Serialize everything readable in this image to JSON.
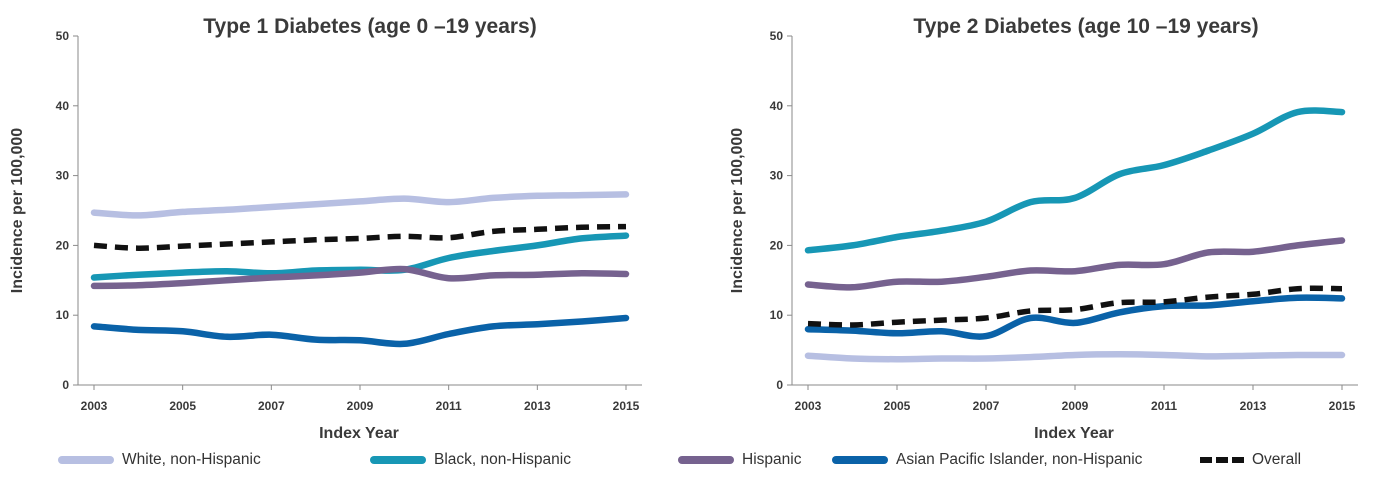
{
  "chart_data": [
    {
      "type": "line",
      "title": "Type 1 Diabetes (age 0 –19 years)",
      "xlabel": "Index Year",
      "ylabel": "Incidence per 100,000",
      "ylim": [
        0,
        50
      ],
      "yticks": [
        "0",
        "10",
        "20",
        "30",
        "40",
        "50"
      ],
      "xticks": [
        "2003",
        "2005",
        "2007",
        "2009",
        "2011",
        "2013",
        "2015"
      ],
      "x": [
        2003,
        2004,
        2005,
        2006,
        2007,
        2008,
        2009,
        2010,
        2011,
        2012,
        2013,
        2014,
        2015
      ],
      "series": [
        {
          "name": "White, non-Hispanic",
          "values": [
            24.7,
            24.3,
            24.8,
            25.1,
            25.5,
            25.9,
            26.3,
            26.7,
            26.2,
            26.8,
            27.1,
            27.2,
            27.3
          ]
        },
        {
          "name": "Black, non-Hispanic",
          "values": [
            15.4,
            15.8,
            16.1,
            16.3,
            16.0,
            16.4,
            16.5,
            16.5,
            18.2,
            19.2,
            20.0,
            21.0,
            21.4
          ]
        },
        {
          "name": "Hispanic",
          "values": [
            14.2,
            14.3,
            14.6,
            15.0,
            15.4,
            15.7,
            16.1,
            16.6,
            15.3,
            15.7,
            15.8,
            16.0,
            15.9
          ]
        },
        {
          "name": "Asian Pacific Islander, non-Hispanic",
          "values": [
            8.4,
            7.9,
            7.7,
            6.9,
            7.2,
            6.5,
            6.4,
            5.9,
            7.3,
            8.4,
            8.7,
            9.1,
            9.6
          ]
        },
        {
          "name": "Overall",
          "values": [
            20.0,
            19.6,
            19.9,
            20.2,
            20.5,
            20.8,
            21.0,
            21.3,
            21.1,
            22.0,
            22.3,
            22.6,
            22.7
          ]
        }
      ]
    },
    {
      "type": "line",
      "title": "Type 2 Diabetes (age 10 –19 years)",
      "xlabel": "Index Year",
      "ylabel": "Incidence per 100,000",
      "ylim": [
        0,
        50
      ],
      "yticks": [
        "0",
        "10",
        "20",
        "30",
        "40",
        "50"
      ],
      "xticks": [
        "2003",
        "2005",
        "2007",
        "2009",
        "2011",
        "2013",
        "2015"
      ],
      "x": [
        2003,
        2004,
        2005,
        2006,
        2007,
        2008,
        2009,
        2010,
        2011,
        2012,
        2013,
        2014,
        2015
      ],
      "series": [
        {
          "name": "White, non-Hispanic",
          "values": [
            4.2,
            3.8,
            3.7,
            3.8,
            3.8,
            4.0,
            4.3,
            4.4,
            4.3,
            4.1,
            4.2,
            4.3,
            4.3
          ]
        },
        {
          "name": "Black, non-Hispanic",
          "values": [
            19.3,
            20.0,
            21.2,
            22.1,
            23.4,
            26.2,
            26.8,
            30.2,
            31.5,
            33.6,
            36.0,
            39.1,
            39.1
          ]
        },
        {
          "name": "Hispanic",
          "values": [
            14.4,
            14.0,
            14.8,
            14.8,
            15.5,
            16.4,
            16.3,
            17.2,
            17.3,
            19.0,
            19.1,
            20.0,
            20.7
          ]
        },
        {
          "name": "Asian Pacific Islander, non-Hispanic",
          "values": [
            8.0,
            7.8,
            7.4,
            7.7,
            7.0,
            9.6,
            8.9,
            10.4,
            11.3,
            11.4,
            12.0,
            12.5,
            12.4
          ]
        },
        {
          "name": "Overall",
          "values": [
            8.8,
            8.6,
            9.0,
            9.3,
            9.6,
            10.6,
            10.8,
            11.8,
            11.9,
            12.6,
            13.0,
            13.8,
            13.8
          ]
        }
      ]
    }
  ],
  "legend": [
    {
      "name": "White, non-Hispanic",
      "color": "#b7bfe2",
      "dashed": false
    },
    {
      "name": "Black, non-Hispanic",
      "color": "#1797b5",
      "dashed": false
    },
    {
      "name": "Hispanic",
      "color": "#76628f",
      "dashed": false
    },
    {
      "name": "Asian Pacific Islander, non-Hispanic",
      "color": "#0a62a8",
      "dashed": false
    },
    {
      "name": "Overall",
      "color": "#111111",
      "dashed": true
    }
  ],
  "series_colors": {
    "White, non-Hispanic": "#b7bfe2",
    "Black, non-Hispanic": "#1797b5",
    "Hispanic": "#76628f",
    "Asian Pacific Islander, non-Hispanic": "#0a62a8",
    "Overall": "#111111"
  }
}
